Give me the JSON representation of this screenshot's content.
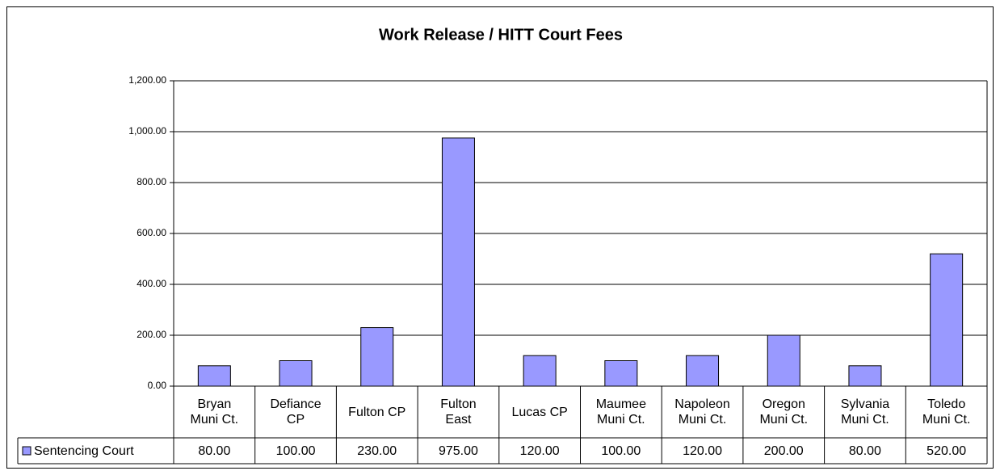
{
  "chart_data": {
    "type": "bar",
    "title": "Work Release / HITT Court Fees",
    "categories": [
      "Bryan Muni Ct.",
      "Defiance CP",
      "Fulton CP",
      "Fulton East",
      "Lucas CP",
      "Maumee Muni Ct.",
      "Napoleon Muni Ct.",
      "Oregon Muni Ct.",
      "Sylvania Muni Ct.",
      "Toledo Muni Ct."
    ],
    "series": [
      {
        "name": "Sentencing Court",
        "color": "#9999ff",
        "values": [
          80,
          100,
          230,
          975,
          120,
          100,
          120,
          200,
          80,
          520
        ],
        "value_labels": [
          "80.00",
          "100.00",
          "230.00",
          "975.00",
          "120.00",
          "100.00",
          "120.00",
          "200.00",
          "80.00",
          "520.00"
        ]
      }
    ],
    "ylim": [
      0,
      1200
    ],
    "yticks": [
      {
        "value": 0,
        "label": "0.00"
      },
      {
        "value": 200,
        "label": "200.00"
      },
      {
        "value": 400,
        "label": "400.00"
      },
      {
        "value": 600,
        "label": "600.00"
      },
      {
        "value": 800,
        "label": "800.00"
      },
      {
        "value": 1000,
        "label": "1,000.00"
      },
      {
        "value": 1200,
        "label": "1,200.00"
      }
    ],
    "grid": true
  }
}
